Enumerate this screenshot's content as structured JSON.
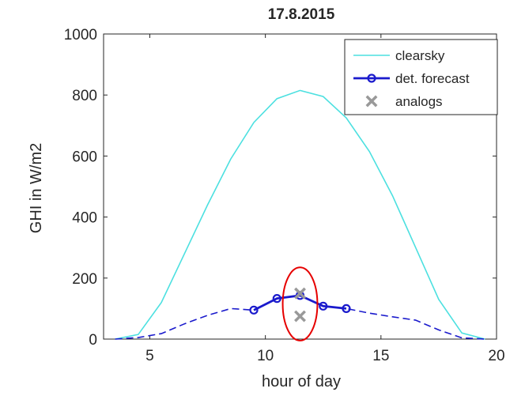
{
  "chart_data": {
    "type": "line",
    "title": "17.8.2015",
    "xlabel": "hour of day",
    "ylabel": "GHI in W/m2",
    "xlim": [
      3,
      20
    ],
    "ylim": [
      0,
      1000
    ],
    "xticks": [
      "5",
      "10",
      "15",
      "20"
    ],
    "yticks": [
      "0",
      "200",
      "400",
      "600",
      "800",
      "1000"
    ],
    "grid": false,
    "legend_position": "top-right",
    "series": [
      {
        "name": "clearsky",
        "style": "solid",
        "color": "#4ce0e0",
        "x": [
          3.5,
          4.5,
          5.5,
          6.5,
          7.5,
          8.5,
          9.5,
          10.5,
          11.5,
          12.5,
          13.5,
          14.5,
          15.5,
          16.5,
          17.5,
          18.5,
          19.5
        ],
        "y": [
          0,
          15,
          120,
          280,
          440,
          590,
          710,
          788,
          815,
          795,
          725,
          615,
          470,
          300,
          130,
          20,
          0
        ]
      },
      {
        "name": "",
        "style": "dashed",
        "color": "#1a1acc",
        "x": [
          3.5,
          4.5,
          5.5,
          6.5,
          7.5,
          8.5,
          9.5,
          10.5,
          11.5,
          12.5,
          13.5,
          14.5,
          15.5,
          16.5,
          17.5,
          18.5,
          19.5
        ],
        "y": [
          0,
          5,
          18,
          50,
          78,
          100,
          95,
          133,
          143,
          108,
          100,
          85,
          73,
          62,
          30,
          4,
          0
        ]
      },
      {
        "name": "det. forecast",
        "style": "solid-markers",
        "color": "#1a1acc",
        "x": [
          9.5,
          10.5,
          11.5,
          12.5,
          13.5
        ],
        "y": [
          95,
          133,
          143,
          108,
          100
        ]
      },
      {
        "name": "analogs",
        "style": "x-markers",
        "color": "#999999",
        "x": [
          11.5,
          11.5
        ],
        "y": [
          150,
          75
        ]
      }
    ],
    "annotations": [
      {
        "type": "ellipse",
        "color": "#e60000",
        "cx": 11.5,
        "cy": 115,
        "rx": 0.75,
        "ry": 120
      }
    ]
  }
}
